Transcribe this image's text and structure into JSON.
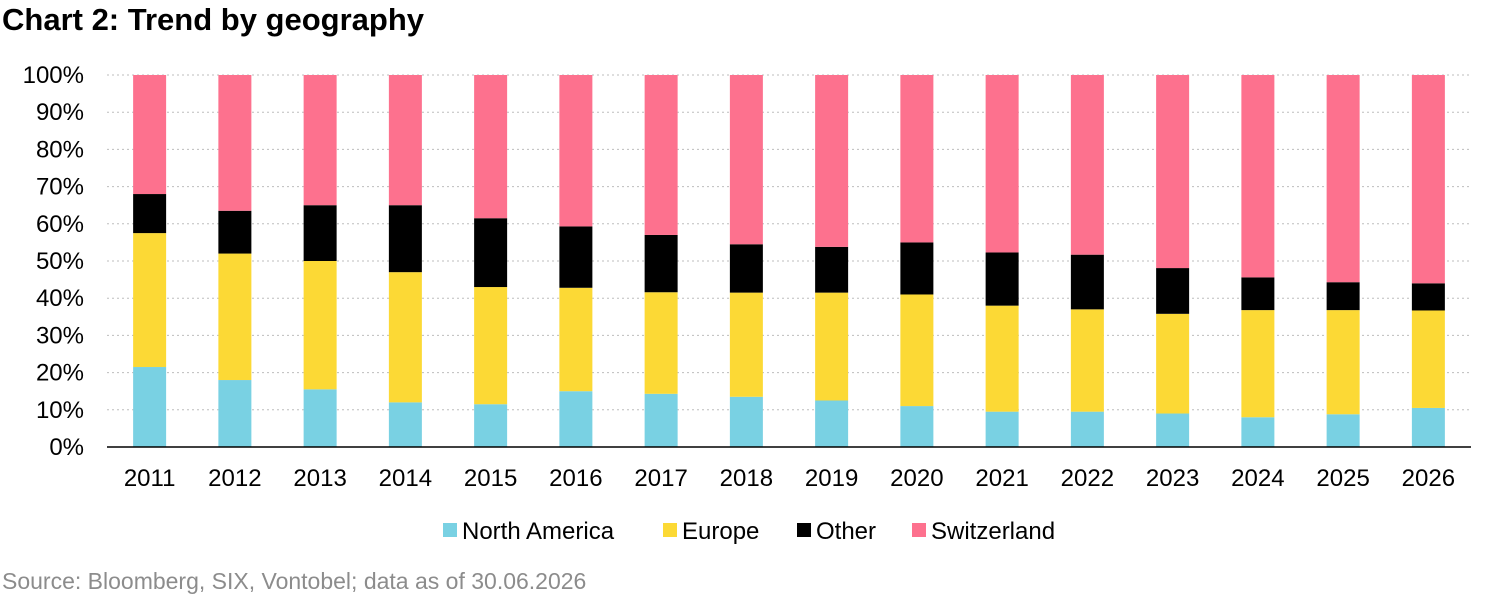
{
  "title": "Chart 2: Trend by geography",
  "source": "Source: Bloomberg, SIX, Vontobel; data as of 30.06.2026",
  "chart_data": {
    "type": "bar",
    "stacked": true,
    "percent_stacked": true,
    "title": "Chart 2: Trend by geography",
    "xlabel": "",
    "ylabel": "",
    "ylim": [
      0,
      100
    ],
    "y_ticks": [
      "0%",
      "10%",
      "20%",
      "30%",
      "40%",
      "50%",
      "60%",
      "70%",
      "80%",
      "90%",
      "100%"
    ],
    "grid": "horizontal dotted",
    "legend_position": "bottom",
    "categories": [
      "2011",
      "2012",
      "2013",
      "2014",
      "2015",
      "2016",
      "2017",
      "2018",
      "2019",
      "2020",
      "2021",
      "2022",
      "2023",
      "2024",
      "2025",
      "2026"
    ],
    "series": [
      {
        "name": "North America",
        "color": "#79d1e3",
        "values": [
          21.5,
          18,
          15.5,
          12,
          11.5,
          15,
          14.3,
          13.5,
          12.5,
          11,
          9.5,
          9.5,
          9,
          8,
          8.8,
          10.5
        ]
      },
      {
        "name": "Europe",
        "color": "#fcd935",
        "values": [
          36,
          34,
          34.5,
          35,
          31.5,
          27.8,
          27.3,
          28,
          29,
          30,
          28.5,
          27.5,
          26.8,
          28.8,
          28,
          26.2
        ]
      },
      {
        "name": "Other",
        "color": "#000000",
        "values": [
          10.5,
          11.5,
          15,
          18,
          18.5,
          16.5,
          15.4,
          13,
          12.3,
          14,
          14.3,
          14.7,
          12.3,
          8.8,
          7.5,
          7.3
        ]
      },
      {
        "name": "Switzerland",
        "color": "#fd718e",
        "values": [
          32,
          36.5,
          35,
          35,
          38.5,
          40.7,
          43,
          45.5,
          46.2,
          45,
          47.7,
          48.3,
          51.9,
          54.4,
          55.7,
          56
        ]
      }
    ]
  }
}
